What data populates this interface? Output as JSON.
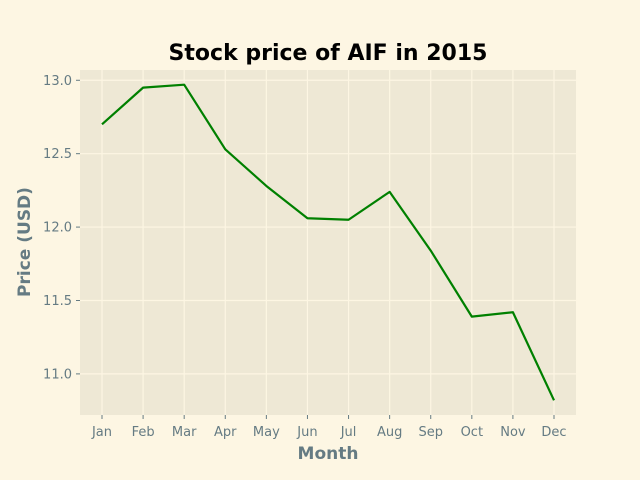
{
  "colors": {
    "figure_background": "#fdf6e3",
    "plot_background": "#eee8d5",
    "grid": "#fdf6e3",
    "tick_text": "#657b83",
    "label_text": "#657b83",
    "title_text": "#000000",
    "line": "#008000"
  },
  "chart_data": {
    "type": "line",
    "title": "Stock price of AIF in 2015",
    "xlabel": "Month",
    "ylabel": "Price (USD)",
    "categories": [
      "Jan",
      "Feb",
      "Mar",
      "Apr",
      "May",
      "Jun",
      "Jul",
      "Aug",
      "Sep",
      "Oct",
      "Nov",
      "Dec"
    ],
    "series": [
      {
        "values": [
          12.7,
          12.95,
          12.97,
          12.53,
          12.28,
          12.06,
          12.05,
          12.24,
          11.84,
          11.39,
          11.42,
          10.82
        ]
      }
    ],
    "yticks": [
      "11.0",
      "11.5",
      "12.0",
      "12.5",
      "13.0"
    ],
    "ylim": [
      10.72,
      13.07
    ],
    "grid": true,
    "legend": "none"
  }
}
